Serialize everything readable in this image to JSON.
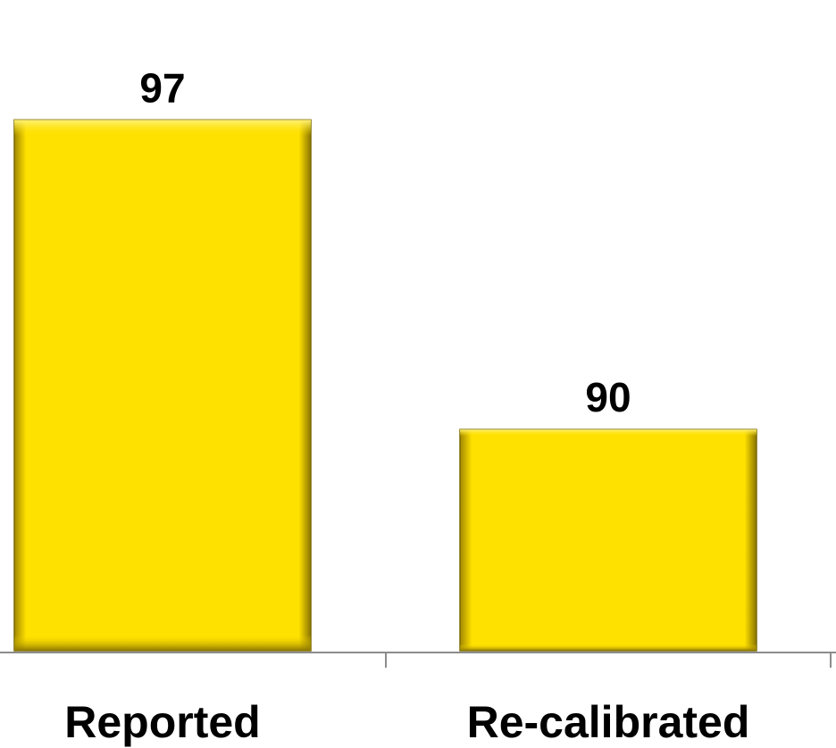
{
  "chart_data": {
    "type": "bar",
    "categories": [
      "Reported",
      "Re-calibrated"
    ],
    "values": [
      97,
      90
    ],
    "data_labels": [
      "97",
      "90"
    ],
    "title": "",
    "xlabel": "",
    "ylabel": "",
    "ylim": [
      85,
      98.5
    ],
    "grid": false,
    "legend": "none",
    "bar_color": "#FFE100",
    "bar_edge_color": "#7a6a00",
    "axis_color": "#8c8c8c"
  }
}
